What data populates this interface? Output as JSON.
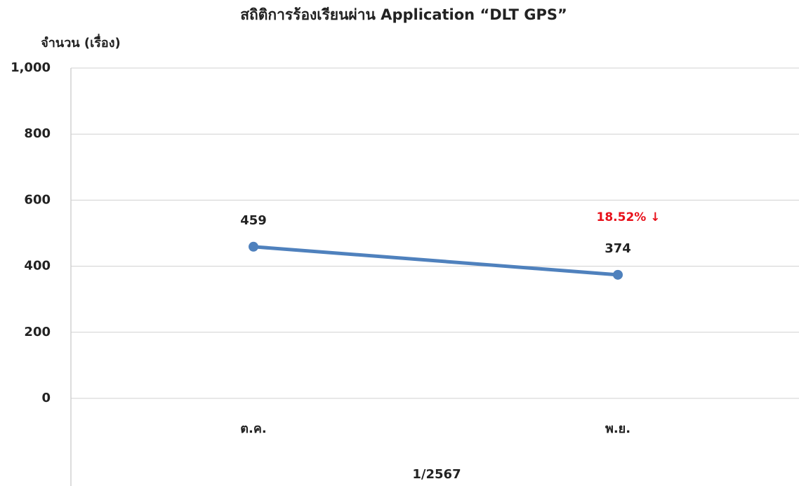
{
  "chart_data": {
    "type": "line",
    "title": "สถิติการร้องเรียนผ่าน Application “DLT GPS”",
    "y_label": "จำนวน (เรื่อง)",
    "x_label": "1/2567",
    "categories": [
      "ต.ค.",
      "พ.ย."
    ],
    "series": [
      {
        "name": "จำนวน",
        "color": "#4f81bd",
        "values": [
          459,
          374
        ]
      }
    ],
    "annotation": "18.52% ↓",
    "ylim": [
      0,
      1000
    ],
    "yticks": [
      0,
      200,
      400,
      600,
      800,
      {
        "value": 1000,
        "label": "1,000"
      }
    ],
    "grid": true
  }
}
